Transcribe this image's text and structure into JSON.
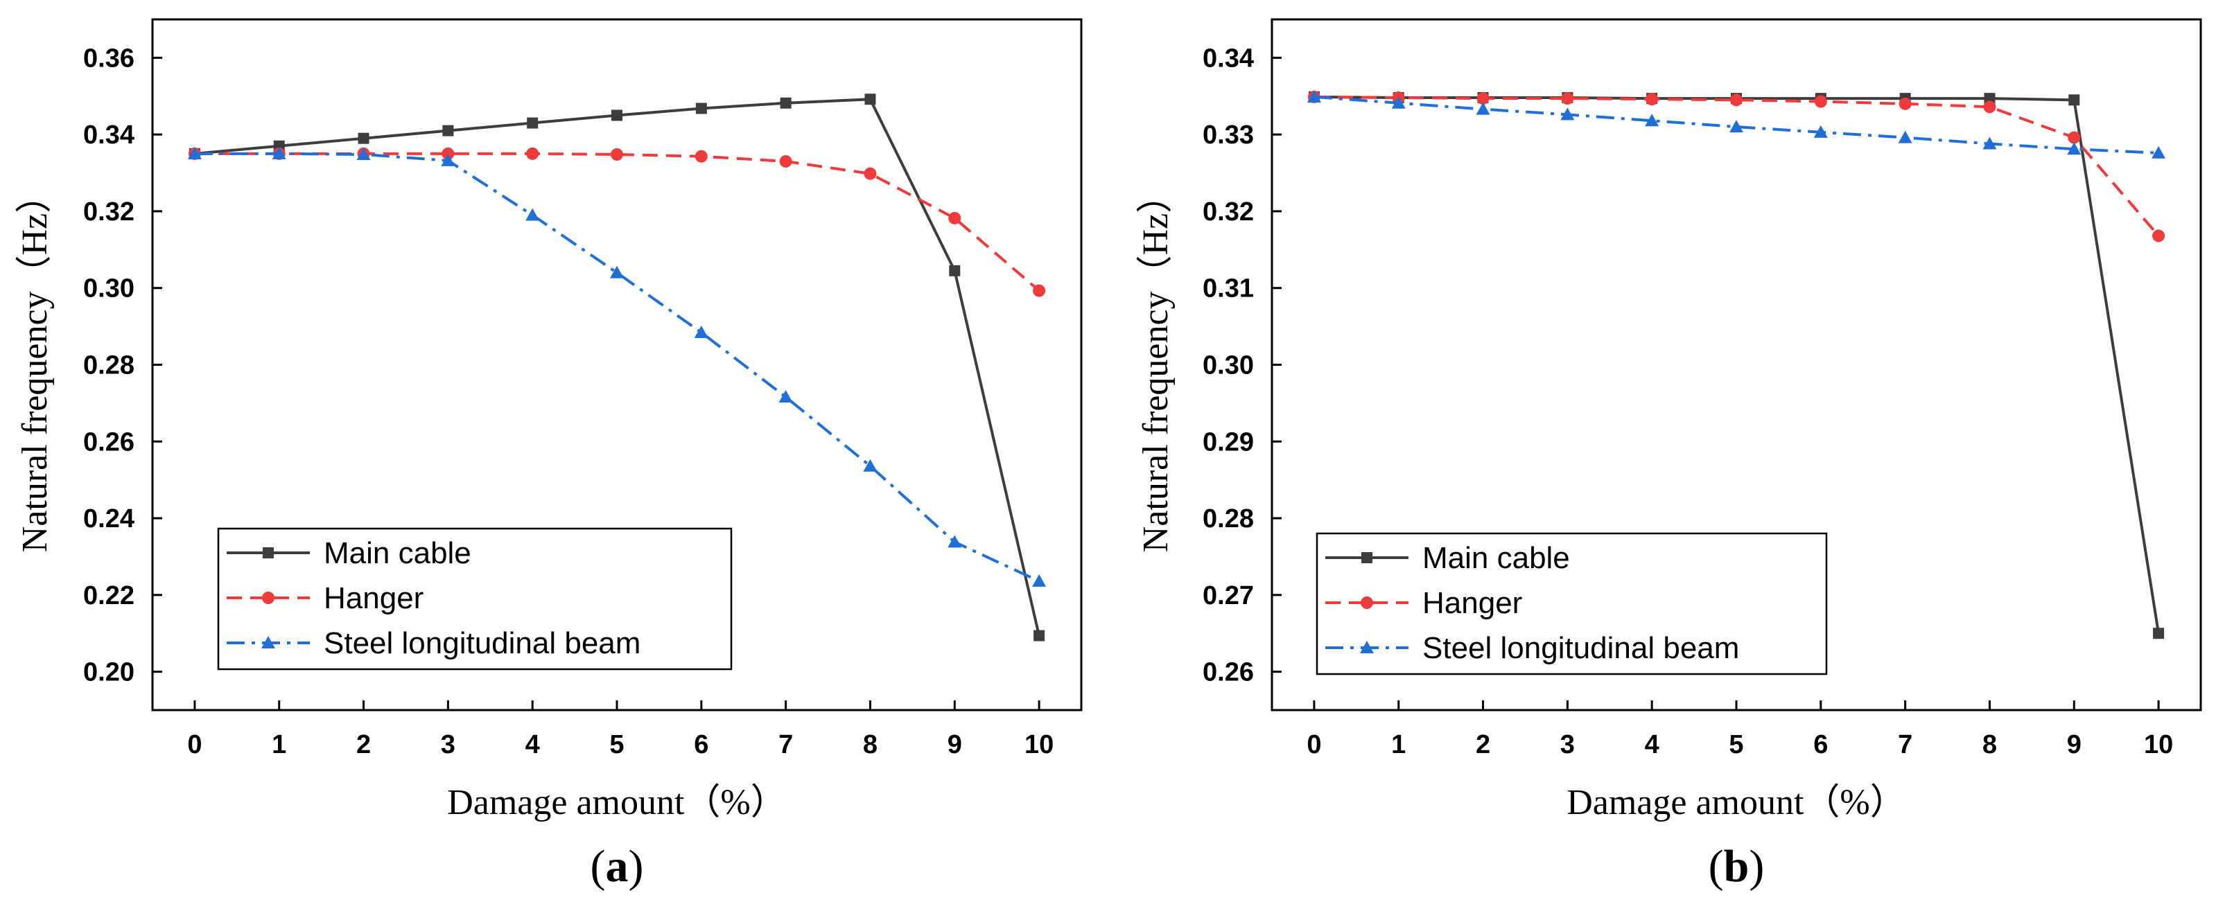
{
  "colors": {
    "main_cable": "#3d3d3d",
    "hanger": "#ef3b3b",
    "steel_beam": "#1f6fd6",
    "axis": "#000000"
  },
  "chart_data": [
    {
      "panel": "a",
      "type": "line",
      "panel_label": "(a)",
      "panel_open": "(",
      "panel_letter": "a",
      "panel_close": ")",
      "xlabel": "Damage amount（%）",
      "ylabel": "Natural frequency（Hz）",
      "x": [
        0,
        1,
        2,
        3,
        4,
        5,
        6,
        7,
        8,
        9,
        10
      ],
      "xlim": [
        -0.5,
        10.5
      ],
      "ylim": [
        0.19,
        0.37
      ],
      "xticks": [
        "0",
        "1",
        "2",
        "3",
        "4",
        "5",
        "6",
        "7",
        "8",
        "9",
        "10"
      ],
      "yticks": [
        "0.20",
        "0.22",
        "0.24",
        "0.26",
        "0.28",
        "0.30",
        "0.32",
        "0.34",
        "0.36"
      ],
      "ytick_values": [
        0.2,
        0.22,
        0.24,
        0.26,
        0.28,
        0.3,
        0.32,
        0.34,
        0.36
      ],
      "legend_position": "lower-left",
      "series": [
        {
          "name": "Main cable",
          "marker": "square",
          "dash": "solid",
          "values": [
            0.335,
            0.337,
            0.339,
            0.341,
            0.343,
            0.345,
            0.3468,
            0.3482,
            0.3492,
            0.3045,
            0.2094
          ]
        },
        {
          "name": "Hanger",
          "marker": "circle",
          "dash": "dashed",
          "values": [
            0.335,
            0.335,
            0.335,
            0.335,
            0.335,
            0.3348,
            0.3343,
            0.333,
            0.3298,
            0.3182,
            0.2993
          ]
        },
        {
          "name": "Steel longitudinal beam",
          "marker": "triangle",
          "dash": "dashdot",
          "values": [
            0.335,
            0.335,
            0.3348,
            0.3332,
            0.319,
            0.304,
            0.2884,
            0.2716,
            0.2536,
            0.2338,
            0.2236
          ]
        }
      ]
    },
    {
      "panel": "b",
      "type": "line",
      "panel_label": "(b)",
      "panel_open": "(",
      "panel_letter": "b",
      "panel_close": ")",
      "xlabel": "Damage amount（%）",
      "ylabel": "Natural frequency（Hz）",
      "x": [
        0,
        1,
        2,
        3,
        4,
        5,
        6,
        7,
        8,
        9,
        10
      ],
      "xlim": [
        -0.5,
        10.5
      ],
      "ylim": [
        0.255,
        0.345
      ],
      "xticks": [
        "0",
        "1",
        "2",
        "3",
        "4",
        "5",
        "6",
        "7",
        "8",
        "9",
        "10"
      ],
      "yticks": [
        "0.26",
        "0.27",
        "0.28",
        "0.29",
        "0.30",
        "0.31",
        "0.32",
        "0.33",
        "0.34"
      ],
      "ytick_values": [
        0.26,
        0.27,
        0.28,
        0.29,
        0.3,
        0.31,
        0.32,
        0.33,
        0.34
      ],
      "legend_position": "lower-left",
      "series": [
        {
          "name": "Main cable",
          "marker": "square",
          "dash": "solid",
          "values": [
            0.3349,
            0.3348,
            0.3348,
            0.3348,
            0.3347,
            0.3347,
            0.3347,
            0.3347,
            0.3347,
            0.3345,
            0.265
          ]
        },
        {
          "name": "Hanger",
          "marker": "circle",
          "dash": "dashed",
          "values": [
            0.3349,
            0.3348,
            0.3347,
            0.3347,
            0.3346,
            0.3345,
            0.3343,
            0.334,
            0.3336,
            0.3296,
            0.3168
          ]
        },
        {
          "name": "Steel longitudinal beam",
          "marker": "triangle",
          "dash": "dashdot",
          "values": [
            0.3349,
            0.3341,
            0.3333,
            0.3326,
            0.3318,
            0.331,
            0.3303,
            0.3296,
            0.3288,
            0.3281,
            0.3276
          ]
        }
      ]
    }
  ]
}
